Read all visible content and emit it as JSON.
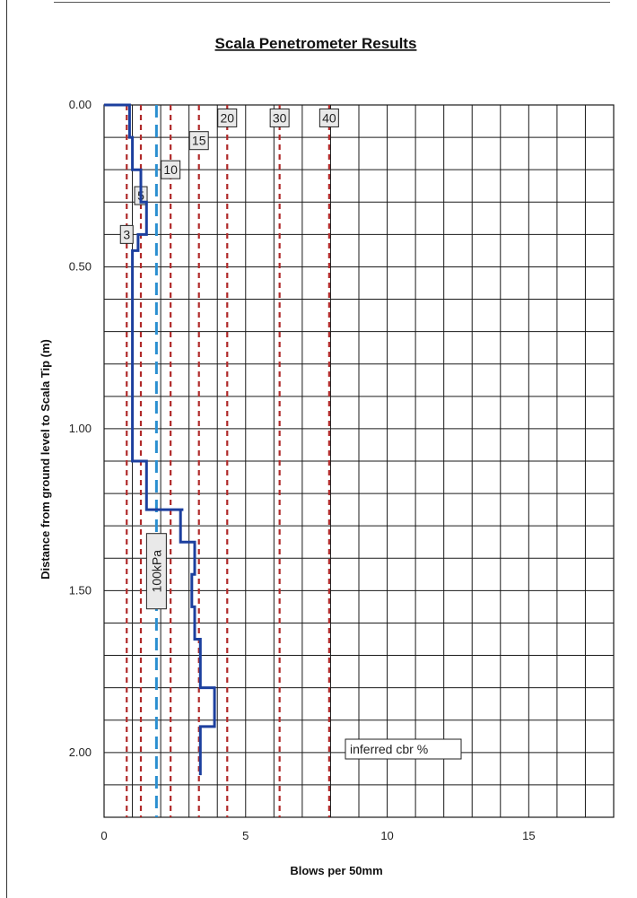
{
  "colors": {
    "grid": "#1a1a1a",
    "cbr_line": "#b02a2a",
    "bearing_line": "#2a8fd0",
    "profile_line": "#1c3f9e",
    "label_box_fill": "#e9e9e9"
  },
  "chart_data": {
    "type": "line",
    "title": "Scala Penetrometer Results",
    "xlabel": "Blows per 50mm",
    "ylabel": "Distance from ground level to Scala Tip (m)",
    "xlim": [
      0,
      18
    ],
    "ylim": [
      2.2,
      0
    ],
    "y_inverted": true,
    "grid": true,
    "x_ticks": [
      0,
      5,
      10,
      15
    ],
    "x_tick_labels": [
      "0",
      "5",
      "10",
      "15"
    ],
    "y_ticks": [
      0,
      0.5,
      1.0,
      1.5,
      2.0
    ],
    "y_tick_labels": [
      "0.00",
      "0.50",
      "1.00",
      "1.50",
      "2.00"
    ],
    "grid_x_step": 1,
    "grid_y_step": 0.1,
    "series": [
      {
        "step_profile": true,
        "x": [
          0,
          0.9,
          0.9,
          1.0,
          1.0,
          1.3,
          1.3,
          1.5,
          1.5,
          1.2,
          1.2,
          1.0,
          1.0,
          1.1,
          1.1,
          1.5,
          1.5,
          1.6,
          1.6,
          2.8,
          2.8,
          2.7,
          2.7,
          3.2,
          3.2,
          3.1,
          3.1,
          3.2,
          3.2,
          3.4,
          3.4,
          3.9,
          3.9,
          3.4,
          3.4
        ],
        "y": [
          0,
          0,
          0.1,
          0.1,
          0.2,
          0.2,
          0.3,
          0.3,
          0.4,
          0.4,
          0.45,
          0.45,
          1.1,
          1.1,
          1.1,
          1.1,
          1.25,
          1.25,
          1.25,
          1.25,
          1.25,
          1.25,
          1.35,
          1.35,
          1.45,
          1.45,
          1.55,
          1.55,
          1.65,
          1.65,
          1.8,
          1.8,
          1.92,
          1.92,
          2.07
        ]
      }
    ],
    "cbr_reference_lines": [
      {
        "cbr": "3",
        "x": 0.8,
        "label_y": 0.4
      },
      {
        "cbr": "5",
        "x": 1.3,
        "label_y": 0.28
      },
      {
        "cbr": "10",
        "x": 2.35,
        "label_y": 0.2
      },
      {
        "cbr": "15",
        "x": 3.35,
        "label_y": 0.11
      },
      {
        "cbr": "20",
        "x": 4.35,
        "label_y": 0.04
      },
      {
        "cbr": "30",
        "x": 6.2,
        "label_y": 0.04
      },
      {
        "cbr": "40",
        "x": 7.95,
        "label_y": 0.04
      }
    ],
    "bearing_reference_line": {
      "label": "100kPa",
      "x": 1.85,
      "label_y": 1.44
    },
    "legend_label": "inferred cbr %"
  }
}
